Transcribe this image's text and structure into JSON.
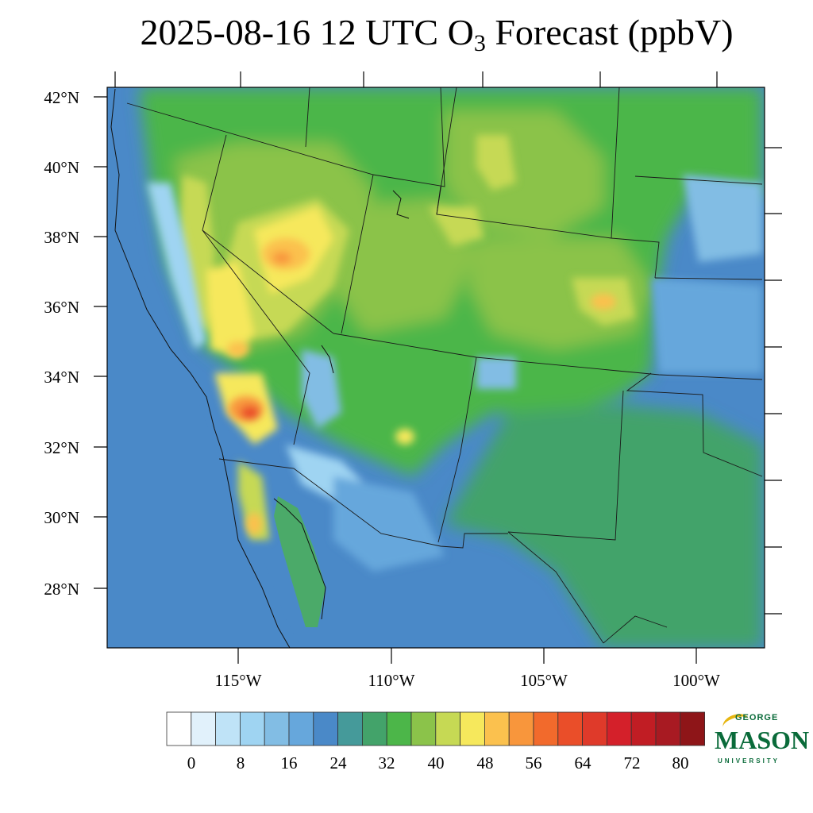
{
  "title": {
    "prefix": "2025-08-16 12 UTC O",
    "subscript": "3",
    "suffix": " Forecast (ppbV)"
  },
  "map": {
    "lat_labels": [
      "42°N",
      "40°N",
      "38°N",
      "36°N",
      "34°N",
      "32°N",
      "30°N",
      "28°N"
    ],
    "lon_labels": [
      "115°W",
      "110°W",
      "105°W",
      "100°W"
    ]
  },
  "colorbar": {
    "tick_labels": [
      "0",
      "8",
      "16",
      "24",
      "32",
      "40",
      "48",
      "56",
      "64",
      "72",
      "80"
    ],
    "colors": [
      "#ffffff",
      "#e1f1fb",
      "#bfe3f7",
      "#9fd4f2",
      "#82bde4",
      "#66a7dc",
      "#4a89c8",
      "#459a9a",
      "#43a36a",
      "#4cb649",
      "#8bc34a",
      "#c6d954",
      "#f6e85c",
      "#fbc14e",
      "#f8963c",
      "#f26a2c",
      "#ea4e29",
      "#df3a2a",
      "#d4202a",
      "#c11d24",
      "#a81a22",
      "#8e1518"
    ]
  },
  "logo": {
    "line1": "GEORGE",
    "line2": "MASON",
    "line3": "UNIVERSITY"
  }
}
